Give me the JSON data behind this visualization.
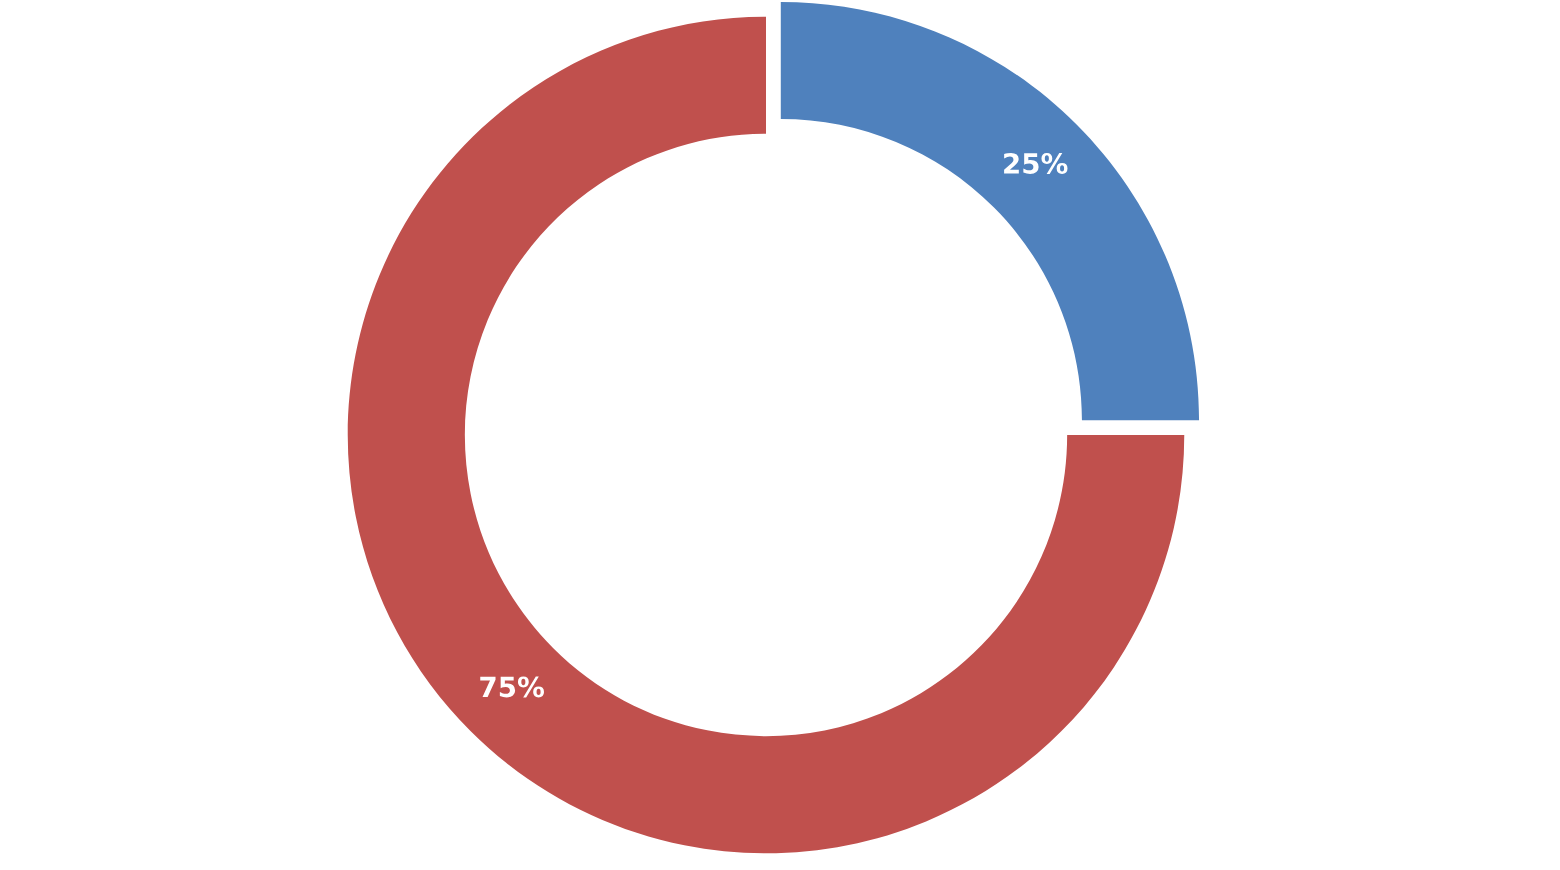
{
  "chart_data": {
    "type": "donut",
    "categories": [
      null,
      null
    ],
    "values": [
      25,
      75
    ],
    "colors": [
      "#4f81bd",
      "#c0504d"
    ],
    "value_labels": [
      "25%",
      "75%"
    ]
  }
}
